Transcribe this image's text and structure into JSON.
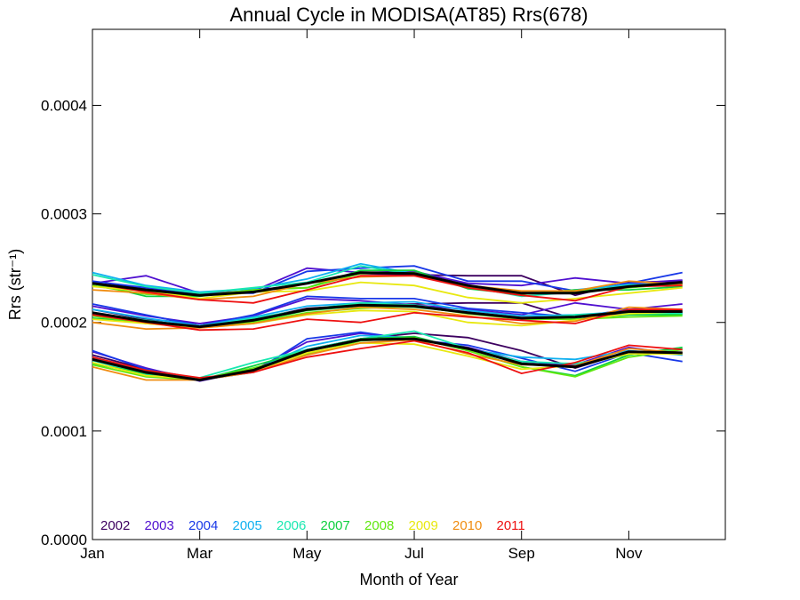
{
  "chart_data": {
    "type": "line",
    "title": "Annual Cycle in MODISA(AT85) Rrs(678)",
    "xlabel": "Month of Year",
    "ylabel": "Rrs (str⁻¹)",
    "ylim": [
      0,
      0.00047
    ],
    "xlim": [
      1,
      12.8
    ],
    "x_ticks": [
      1,
      3,
      5,
      7,
      9,
      11
    ],
    "x_tick_labels": [
      "Jan",
      "Mar",
      "May",
      "Jul",
      "Sep",
      "Nov"
    ],
    "y_ticks": [
      0,
      0.0001,
      0.0002,
      0.0003,
      0.0004
    ],
    "y_tick_labels": [
      "0.0000",
      "0.0001",
      "0.0002",
      "0.0003",
      "0.0004"
    ],
    "grid": false,
    "legend_position": "bottom-left, inside plot",
    "x": [
      1,
      2,
      3,
      4,
      5,
      6,
      7,
      8,
      9,
      10,
      11,
      12
    ],
    "series": [
      {
        "name": "2002",
        "color": "#3d0060",
        "upper": [
          0.000236,
          0.000232,
          0.000226,
          0.000229,
          0.000236,
          0.000245,
          0.000244,
          0.000243,
          0.000243,
          0.000225,
          0.000237,
          0.000238
        ],
        "middle": [
          0.000212,
          0.000203,
          0.000199,
          0.000203,
          0.000213,
          0.000216,
          0.000217,
          0.000218,
          0.000218,
          0.000203,
          0.000209,
          0.00021
        ],
        "lower": [
          0.00017,
          0.000157,
          0.000148,
          0.000155,
          0.000175,
          0.000185,
          0.00019,
          0.000186,
          0.000174,
          0.000158,
          0.000173,
          0.000172
        ]
      },
      {
        "name": "2003",
        "color": "#5010d0",
        "upper": [
          0.000236,
          0.000243,
          0.000227,
          0.000229,
          0.00025,
          0.000246,
          0.000247,
          0.000236,
          0.000234,
          0.000241,
          0.000236,
          0.000239
        ],
        "middle": [
          0.000215,
          0.000206,
          0.000199,
          0.000206,
          0.000222,
          0.00022,
          0.000216,
          0.000212,
          0.000207,
          0.000218,
          0.000212,
          0.000217
        ],
        "lower": [
          0.000173,
          0.000158,
          0.000146,
          0.000156,
          0.000182,
          0.00019,
          0.000185,
          0.000177,
          0.000164,
          0.000161,
          0.000177,
          0.00017
        ]
      },
      {
        "name": "2004",
        "color": "#1838e8",
        "upper": [
          0.000238,
          0.000232,
          0.000227,
          0.000227,
          0.000247,
          0.00025,
          0.000252,
          0.000238,
          0.000238,
          0.000229,
          0.000236,
          0.000246
        ],
        "middle": [
          0.000217,
          0.000207,
          0.000197,
          0.000207,
          0.000224,
          0.000222,
          0.000222,
          0.000213,
          0.000209,
          0.000205,
          0.000212,
          0.000208
        ],
        "lower": [
          0.000174,
          0.000157,
          0.000147,
          0.000154,
          0.000185,
          0.000191,
          0.000184,
          0.000179,
          0.000167,
          0.000155,
          0.000172,
          0.000164
        ]
      },
      {
        "name": "2005",
        "color": "#10b0f0",
        "upper": [
          0.000246,
          0.000234,
          0.000228,
          0.000231,
          0.00024,
          0.000254,
          0.000245,
          0.000233,
          0.000226,
          0.00023,
          0.000235,
          0.000236
        ],
        "middle": [
          0.000212,
          0.000204,
          0.000197,
          0.000205,
          0.000215,
          0.000218,
          0.000219,
          0.000211,
          0.000206,
          0.000207,
          0.00021,
          0.000209
        ],
        "lower": [
          0.000168,
          0.000155,
          0.000148,
          0.000156,
          0.000178,
          0.000188,
          0.000186,
          0.000175,
          0.000168,
          0.000166,
          0.000174,
          0.00017
        ]
      },
      {
        "name": "2006",
        "color": "#18e8b0",
        "upper": [
          0.000244,
          0.000233,
          0.000227,
          0.000232,
          0.000237,
          0.000252,
          0.000244,
          0.000233,
          0.000224,
          0.000228,
          0.000234,
          0.000235
        ],
        "middle": [
          0.000209,
          0.000202,
          0.000196,
          0.000204,
          0.000212,
          0.000218,
          0.000216,
          0.000209,
          0.000203,
          0.000207,
          0.000209,
          0.000208
        ],
        "lower": [
          0.000165,
          0.000152,
          0.000149,
          0.000163,
          0.000175,
          0.000185,
          0.000192,
          0.000176,
          0.000164,
          0.000162,
          0.00017,
          0.000176
        ]
      },
      {
        "name": "2007",
        "color": "#10d040",
        "upper": [
          0.000236,
          0.000224,
          0.000224,
          0.00023,
          0.000232,
          0.000248,
          0.000248,
          0.000231,
          0.000226,
          0.00023,
          0.00023,
          0.000233
        ],
        "middle": [
          0.000204,
          0.0002,
          0.000196,
          0.000201,
          0.000211,
          0.000215,
          0.000214,
          0.000209,
          0.000203,
          0.000203,
          0.000207,
          0.000207
        ],
        "lower": [
          0.000162,
          0.000153,
          0.000147,
          0.00016,
          0.000174,
          0.000185,
          0.000187,
          0.000174,
          0.000159,
          0.000151,
          0.00017,
          0.000177
        ]
      },
      {
        "name": "2008",
        "color": "#60e810",
        "upper": [
          0.000234,
          0.000226,
          0.000225,
          0.00023,
          0.000232,
          0.000245,
          0.000246,
          0.000232,
          0.000226,
          0.000229,
          0.000232,
          0.000236
        ],
        "middle": [
          0.000206,
          0.000199,
          0.000196,
          0.0002,
          0.000209,
          0.000213,
          0.000215,
          0.000208,
          0.000203,
          0.000203,
          0.000205,
          0.000206
        ],
        "lower": [
          0.000161,
          0.00015,
          0.000147,
          0.000158,
          0.000171,
          0.000183,
          0.000186,
          0.000174,
          0.000159,
          0.00015,
          0.000168,
          0.000175
        ]
      },
      {
        "name": "2009",
        "color": "#e8e810",
        "upper": [
          0.000233,
          0.000229,
          0.000222,
          0.000228,
          0.000229,
          0.000237,
          0.000234,
          0.000223,
          0.000218,
          0.000222,
          0.000227,
          0.000232
        ],
        "middle": [
          0.000203,
          0.000199,
          0.000195,
          0.000199,
          0.000207,
          0.000211,
          0.00021,
          0.0002,
          0.000197,
          0.000202,
          0.000208,
          0.00021
        ],
        "lower": [
          0.000163,
          0.000151,
          0.000148,
          0.000155,
          0.000172,
          0.000181,
          0.00018,
          0.000169,
          0.000157,
          0.00016,
          0.000171,
          0.000171
        ]
      },
      {
        "name": "2010",
        "color": "#f08c10",
        "upper": [
          0.00023,
          0.000227,
          0.000221,
          0.000224,
          0.000236,
          0.000242,
          0.000243,
          0.000234,
          0.000229,
          0.000229,
          0.000238,
          0.000235
        ],
        "middle": [
          0.0002,
          0.000194,
          0.000195,
          0.000199,
          0.000208,
          0.000214,
          0.000212,
          0.000206,
          0.000199,
          0.000201,
          0.000214,
          0.000212
        ],
        "lower": [
          0.000159,
          0.000147,
          0.000147,
          0.000154,
          0.00017,
          0.000181,
          0.000184,
          0.000171,
          0.000161,
          0.00016,
          0.000176,
          0.000172
        ]
      },
      {
        "name": "2011",
        "color": "#ee1010",
        "upper": [
          0.000236,
          0.000228,
          0.000221,
          0.000218,
          0.00023,
          0.000243,
          0.000243,
          0.000232,
          0.000225,
          0.00022,
          0.000233,
          0.000234
        ],
        "middle": [
          0.000207,
          0.0002,
          0.000193,
          0.000194,
          0.000203,
          0.0002,
          0.000209,
          0.000205,
          0.000202,
          0.000199,
          0.000212,
          0.000212
        ],
        "lower": [
          0.000168,
          0.000156,
          0.000149,
          0.000154,
          0.000168,
          0.000176,
          0.000183,
          0.000172,
          0.000153,
          0.000163,
          0.000179,
          0.000175
        ]
      }
    ],
    "mean": {
      "color": "#000000",
      "upper": [
        0.000236,
        0.00023,
        0.000225,
        0.000228,
        0.000236,
        0.000246,
        0.000245,
        0.000234,
        0.000227,
        0.000227,
        0.000233,
        0.000237
      ],
      "middle": [
        0.000209,
        0.000201,
        0.000196,
        0.000202,
        0.000212,
        0.000216,
        0.000215,
        0.000209,
        0.000204,
        0.000205,
        0.00021,
        0.00021
      ],
      "lower": [
        0.000166,
        0.000154,
        0.000147,
        0.000156,
        0.000174,
        0.000184,
        0.000185,
        0.000176,
        0.000162,
        0.000159,
        0.000173,
        0.000172
      ]
    }
  }
}
